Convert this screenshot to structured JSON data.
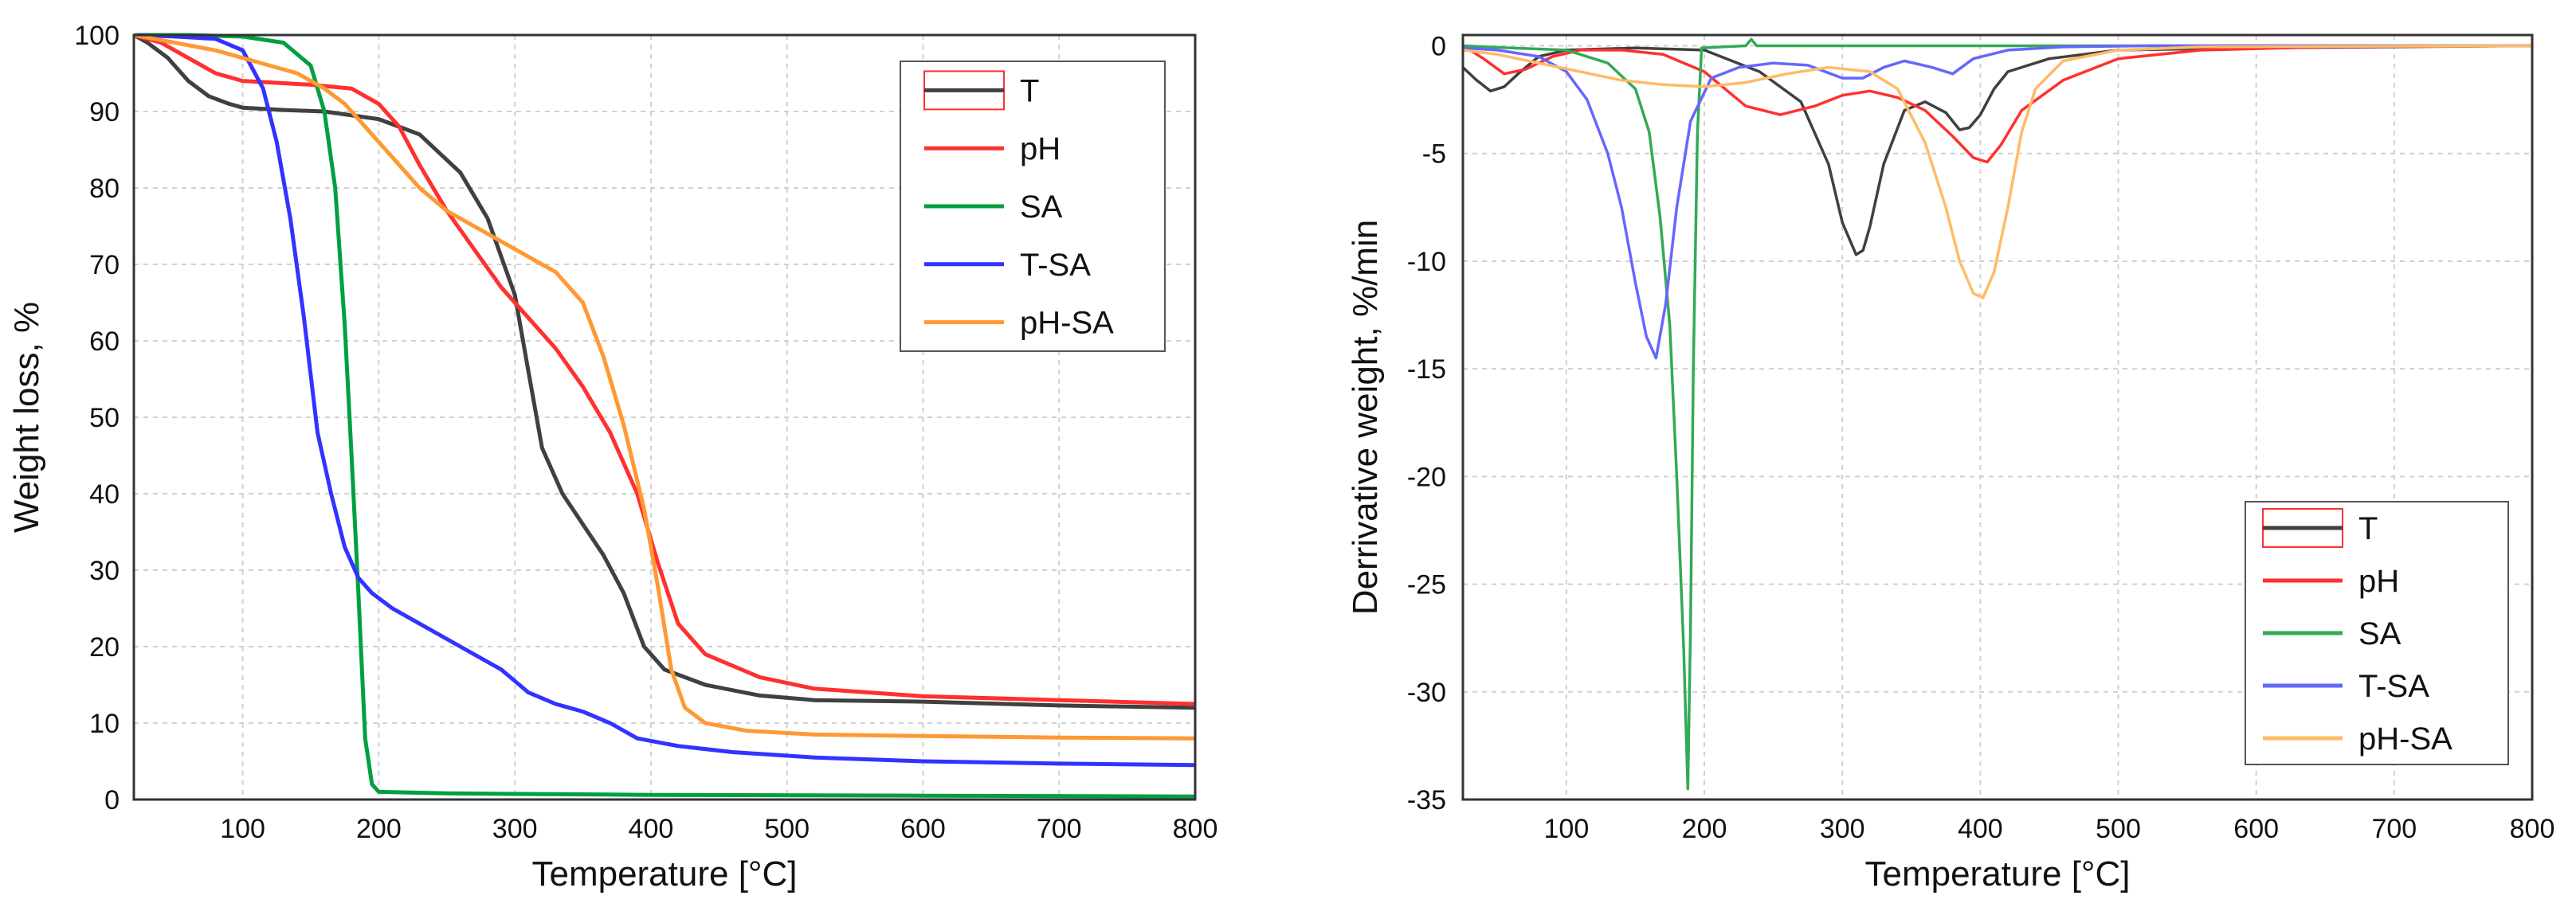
{
  "chart_data": [
    {
      "type": "line",
      "title": "",
      "xlabel": "Temperature [°C]",
      "ylabel": "Weight loss, %",
      "xlim": [
        20,
        800
      ],
      "ylim": [
        0,
        100
      ],
      "xticks": [
        100,
        200,
        300,
        400,
        500,
        600,
        700,
        800
      ],
      "yticks": [
        0,
        10,
        20,
        30,
        40,
        50,
        60,
        70,
        80,
        90,
        100
      ],
      "grid": true,
      "legend_position": "top-right",
      "series": [
        {
          "name": "T",
          "color": "#404040",
          "x": [
            20,
            30,
            45,
            60,
            75,
            90,
            100,
            130,
            160,
            200,
            230,
            260,
            280,
            300,
            310,
            320,
            335,
            350,
            365,
            380,
            395,
            410,
            440,
            480,
            520,
            600,
            700,
            800
          ],
          "y": [
            100,
            99,
            97,
            94,
            92,
            91,
            90.5,
            90.2,
            90,
            89,
            87,
            82,
            76,
            66,
            56,
            46,
            40,
            36,
            32,
            27,
            20,
            17,
            15,
            13.6,
            13,
            12.8,
            12.3,
            12
          ]
        },
        {
          "name": "pH",
          "color": "#ff3030",
          "x": [
            20,
            40,
            60,
            80,
            100,
            120,
            150,
            180,
            200,
            215,
            230,
            250,
            270,
            290,
            310,
            330,
            350,
            370,
            390,
            405,
            420,
            440,
            480,
            520,
            600,
            700,
            800
          ],
          "y": [
            100,
            99,
            97,
            95,
            94,
            93.8,
            93.5,
            93,
            91,
            88,
            83,
            77,
            72,
            67,
            63,
            59,
            54,
            48,
            40,
            31,
            23,
            19,
            16,
            14.5,
            13.5,
            13,
            12.5
          ]
        },
        {
          "name": "SA",
          "color": "#00a040",
          "x": [
            20,
            60,
            100,
            130,
            150,
            160,
            168,
            175,
            180,
            185,
            190,
            195,
            200,
            250,
            400,
            600,
            800
          ],
          "y": [
            100,
            100,
            99.8,
            99,
            96,
            90,
            80,
            62,
            45,
            27,
            8,
            2,
            1,
            0.8,
            0.6,
            0.5,
            0.4
          ]
        },
        {
          "name": "T-SA",
          "color": "#3333ff",
          "x": [
            20,
            50,
            80,
            100,
            115,
            125,
            135,
            145,
            155,
            165,
            175,
            185,
            195,
            210,
            230,
            260,
            290,
            310,
            330,
            350,
            370,
            390,
            420,
            460,
            520,
            600,
            700,
            800
          ],
          "y": [
            100,
            99.8,
            99.5,
            98,
            93,
            86,
            76,
            63,
            48,
            40,
            33,
            29,
            27,
            25,
            23,
            20,
            17,
            14,
            12.5,
            11.5,
            10,
            8,
            7,
            6.2,
            5.5,
            5,
            4.7,
            4.5
          ]
        },
        {
          "name": "pH-SA",
          "color": "#ff9933",
          "x": [
            20,
            50,
            80,
            110,
            140,
            160,
            175,
            190,
            210,
            230,
            250,
            270,
            290,
            310,
            330,
            350,
            365,
            380,
            395,
            405,
            415,
            425,
            440,
            470,
            520,
            600,
            700,
            800
          ],
          "y": [
            100,
            99,
            98,
            96.5,
            95,
            93,
            91,
            88,
            84,
            80,
            77,
            75,
            73,
            71,
            69,
            65,
            58,
            49,
            38,
            28,
            17,
            12,
            10,
            9,
            8.5,
            8.3,
            8.1,
            8
          ]
        }
      ]
    },
    {
      "type": "line",
      "title": "",
      "xlabel": "Temperature [°C]",
      "ylabel": "Derrivative weight, %/min",
      "xlim": [
        25,
        800
      ],
      "ylim": [
        -35,
        0.5
      ],
      "xticks": [
        100,
        200,
        300,
        400,
        500,
        600,
        700,
        800
      ],
      "yticks": [
        0,
        -5,
        -10,
        -15,
        -20,
        -25,
        -30,
        -35
      ],
      "grid": true,
      "legend_position": "bottom-right",
      "series": [
        {
          "name": "T",
          "color": "#404040",
          "x": [
            25,
            35,
            45,
            55,
            65,
            80,
            100,
            150,
            200,
            240,
            270,
            290,
            300,
            310,
            315,
            320,
            330,
            345,
            360,
            375,
            385,
            392,
            400,
            410,
            420,
            450,
            500,
            600,
            700,
            800
          ],
          "y": [
            -1,
            -1.6,
            -2.1,
            -1.9,
            -1.3,
            -0.5,
            -0.2,
            -0.1,
            -0.2,
            -1.2,
            -2.6,
            -5.5,
            -8.2,
            -9.7,
            -9.5,
            -8.4,
            -5.5,
            -3,
            -2.6,
            -3.1,
            -3.9,
            -3.8,
            -3.2,
            -2,
            -1.2,
            -0.6,
            -0.2,
            -0.1,
            -0.05,
            0
          ]
        },
        {
          "name": "pH",
          "color": "#ff3030",
          "x": [
            25,
            40,
            55,
            70,
            90,
            110,
            140,
            170,
            200,
            230,
            255,
            280,
            300,
            320,
            340,
            360,
            380,
            395,
            405,
            415,
            430,
            460,
            500,
            560,
            650,
            800
          ],
          "y": [
            0,
            -0.6,
            -1.3,
            -1.1,
            -0.5,
            -0.2,
            -0.2,
            -0.4,
            -1.2,
            -2.8,
            -3.2,
            -2.8,
            -2.3,
            -2.1,
            -2.4,
            -3,
            -4.2,
            -5.2,
            -5.4,
            -4.6,
            -3,
            -1.6,
            -0.6,
            -0.2,
            -0.05,
            0
          ]
        },
        {
          "name": "SA",
          "color": "#33aa55",
          "x": [
            25,
            60,
            100,
            130,
            150,
            160,
            168,
            175,
            180,
            185,
            188,
            190,
            192,
            195,
            198,
            230,
            234,
            238,
            300,
            500,
            800
          ],
          "y": [
            0,
            -0.1,
            -0.2,
            -0.8,
            -2,
            -4,
            -8,
            -13,
            -20,
            -28,
            -34.5,
            -27,
            -15,
            -4,
            -0.1,
            0,
            0.3,
            0,
            0,
            0,
            0
          ]
        },
        {
          "name": "T-SA",
          "color": "#6666ff",
          "x": [
            25,
            50,
            80,
            100,
            115,
            130,
            140,
            150,
            158,
            165,
            172,
            180,
            190,
            205,
            225,
            250,
            275,
            300,
            315,
            330,
            345,
            365,
            380,
            395,
            420,
            460,
            520,
            800
          ],
          "y": [
            -0.1,
            -0.2,
            -0.5,
            -1.2,
            -2.5,
            -5,
            -7.5,
            -11,
            -13.5,
            -14.5,
            -12,
            -7.5,
            -3.5,
            -1.5,
            -1,
            -0.8,
            -0.9,
            -1.5,
            -1.5,
            -1,
            -0.7,
            -1,
            -1.3,
            -0.6,
            -0.2,
            -0.05,
            0,
            0
          ]
        },
        {
          "name": "pH-SA",
          "color": "#ffbb66",
          "x": [
            25,
            50,
            80,
            110,
            140,
            170,
            200,
            230,
            260,
            290,
            320,
            340,
            360,
            375,
            385,
            395,
            402,
            410,
            420,
            430,
            440,
            460,
            500,
            560,
            800
          ],
          "y": [
            -0.2,
            -0.4,
            -0.8,
            -1.2,
            -1.6,
            -1.8,
            -1.9,
            -1.7,
            -1.3,
            -1,
            -1.2,
            -2,
            -4.5,
            -7.5,
            -10,
            -11.5,
            -11.7,
            -10.5,
            -7.5,
            -4,
            -2,
            -0.7,
            -0.2,
            -0.05,
            0
          ]
        }
      ]
    }
  ]
}
